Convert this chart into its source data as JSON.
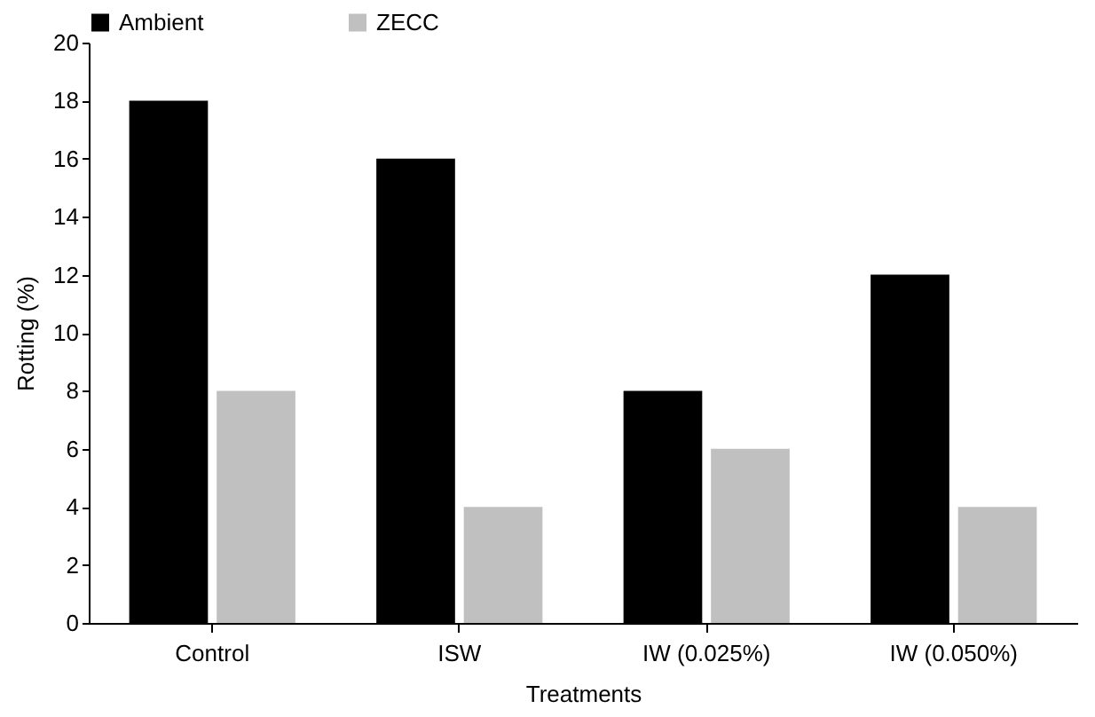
{
  "chart_data": {
    "type": "bar",
    "xlabel": "Treatments",
    "ylabel": "Rotting (%)",
    "categories": [
      "Control",
      "ISW",
      "IW (0.025%)",
      "IW (0.050%)"
    ],
    "series": [
      {
        "name": "Ambient",
        "color": "#000000",
        "values": [
          18,
          16,
          8,
          12
        ]
      },
      {
        "name": "ZECC",
        "color": "#c0c0c0",
        "values": [
          8,
          4,
          6,
          4
        ]
      }
    ],
    "ylim": [
      0,
      20
    ],
    "yticks": [
      0,
      2,
      4,
      6,
      8,
      10,
      12,
      14,
      16,
      18,
      20
    ],
    "grid": false,
    "legend": "top"
  }
}
